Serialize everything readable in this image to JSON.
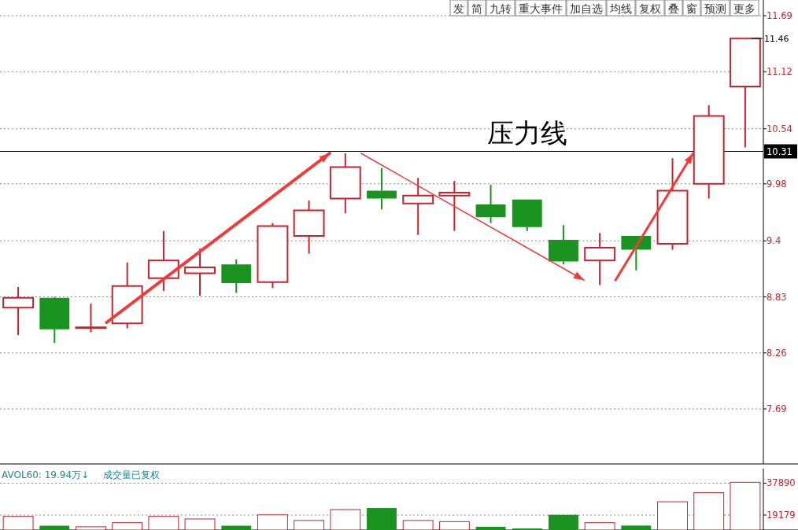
{
  "chart_data": [
    {
      "type": "candlestick",
      "categories": [
        null,
        null,
        null,
        null,
        null,
        null,
        null,
        null,
        null,
        null,
        null,
        null,
        null,
        null,
        null,
        null,
        null,
        null,
        null,
        null,
        null
      ],
      "ohlc": [
        [
          8.72,
          8.93,
          8.44,
          8.82
        ],
        [
          8.82,
          8.83,
          8.36,
          8.5
        ],
        [
          8.52,
          8.76,
          8.47,
          8.52
        ],
        [
          8.56,
          9.18,
          8.51,
          8.94
        ],
        [
          9.02,
          9.5,
          8.89,
          9.2
        ],
        [
          9.07,
          9.32,
          8.84,
          9.13
        ],
        [
          9.16,
          9.21,
          8.87,
          8.97
        ],
        [
          8.98,
          9.58,
          8.92,
          9.55
        ],
        [
          9.45,
          9.81,
          9.27,
          9.71
        ],
        [
          9.83,
          10.29,
          9.68,
          10.15
        ],
        [
          9.91,
          10.14,
          9.72,
          9.83
        ],
        [
          9.78,
          10.04,
          9.46,
          9.86
        ],
        [
          9.86,
          10.01,
          9.5,
          9.89
        ],
        [
          9.77,
          9.97,
          9.58,
          9.64
        ],
        [
          9.82,
          9.82,
          9.5,
          9.54
        ],
        [
          9.41,
          9.56,
          9.16,
          9.19
        ],
        [
          9.2,
          9.48,
          8.95,
          9.33
        ],
        [
          9.45,
          9.45,
          9.1,
          9.31
        ],
        [
          9.37,
          10.24,
          9.31,
          9.91
        ],
        [
          9.98,
          10.78,
          9.83,
          10.67
        ],
        [
          10.97,
          11.46,
          10.35,
          11.46
        ]
      ],
      "ylim": [
        7.13,
        11.85
      ],
      "yticks": [
        7.69,
        8.26,
        8.83,
        9.4,
        9.98,
        10.54,
        11.12,
        11.69
      ],
      "grid": "y",
      "ref_lines": [
        {
          "axis": "y",
          "value": 10.31,
          "label": "10.31",
          "color": "#000000"
        }
      ],
      "annotations": [
        "压力线",
        "11.46",
        "发",
        "简",
        "九转",
        "重大事件",
        "加自选",
        "均线",
        "复权",
        "叠",
        "窗",
        "预测",
        "更多"
      ]
    },
    {
      "type": "bar",
      "categories": [
        null,
        null,
        null,
        null,
        null,
        null,
        null,
        null,
        null,
        null,
        null,
        null,
        null,
        null,
        null,
        null,
        null,
        null,
        null,
        null,
        null
      ],
      "values": [
        18400,
        12900,
        12300,
        14700,
        18400,
        16900,
        12900,
        19300,
        16000,
        22400,
        23300,
        16000,
        15300,
        12300,
        11300,
        19300,
        14700,
        13000,
        27000,
        32300,
        38400
      ],
      "colors": [
        "#c8232c",
        "#1a9321",
        "#c8232c",
        "#c8232c",
        "#c8232c",
        "#c8232c",
        "#1a9321",
        "#c8232c",
        "#c8232c",
        "#c8232c",
        "#1a9321",
        "#c8232c",
        "#c8232c",
        "#1a9321",
        "#1a9321",
        "#1a9321",
        "#c8232c",
        "#1a9321",
        "#c8232c",
        "#c8232c",
        "#c8232c"
      ],
      "ylim": [
        10400,
        46400
      ],
      "yticks": [
        19179,
        37890
      ],
      "grid": "y",
      "annotations": [
        "AVOL60: 19.94万↓",
        "成交量已复权"
      ]
    }
  ]
}
